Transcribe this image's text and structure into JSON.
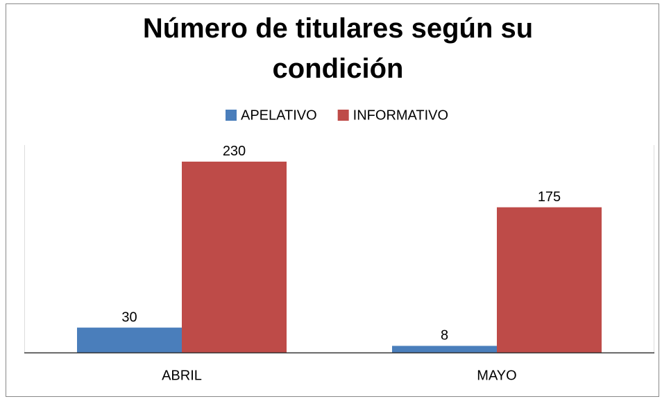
{
  "chart_data": {
    "type": "bar",
    "title": "Número de titulares según su condición",
    "categories": [
      "ABRIL",
      "MAYO"
    ],
    "series": [
      {
        "name": "APELATIVO",
        "color": "#4a7ebb",
        "values": [
          30,
          8
        ]
      },
      {
        "name": "INFORMATIVO",
        "color": "#be4b48",
        "values": [
          230,
          175
        ]
      }
    ],
    "ylim": [
      0,
      250
    ],
    "legend": "top",
    "data_labels": true
  }
}
